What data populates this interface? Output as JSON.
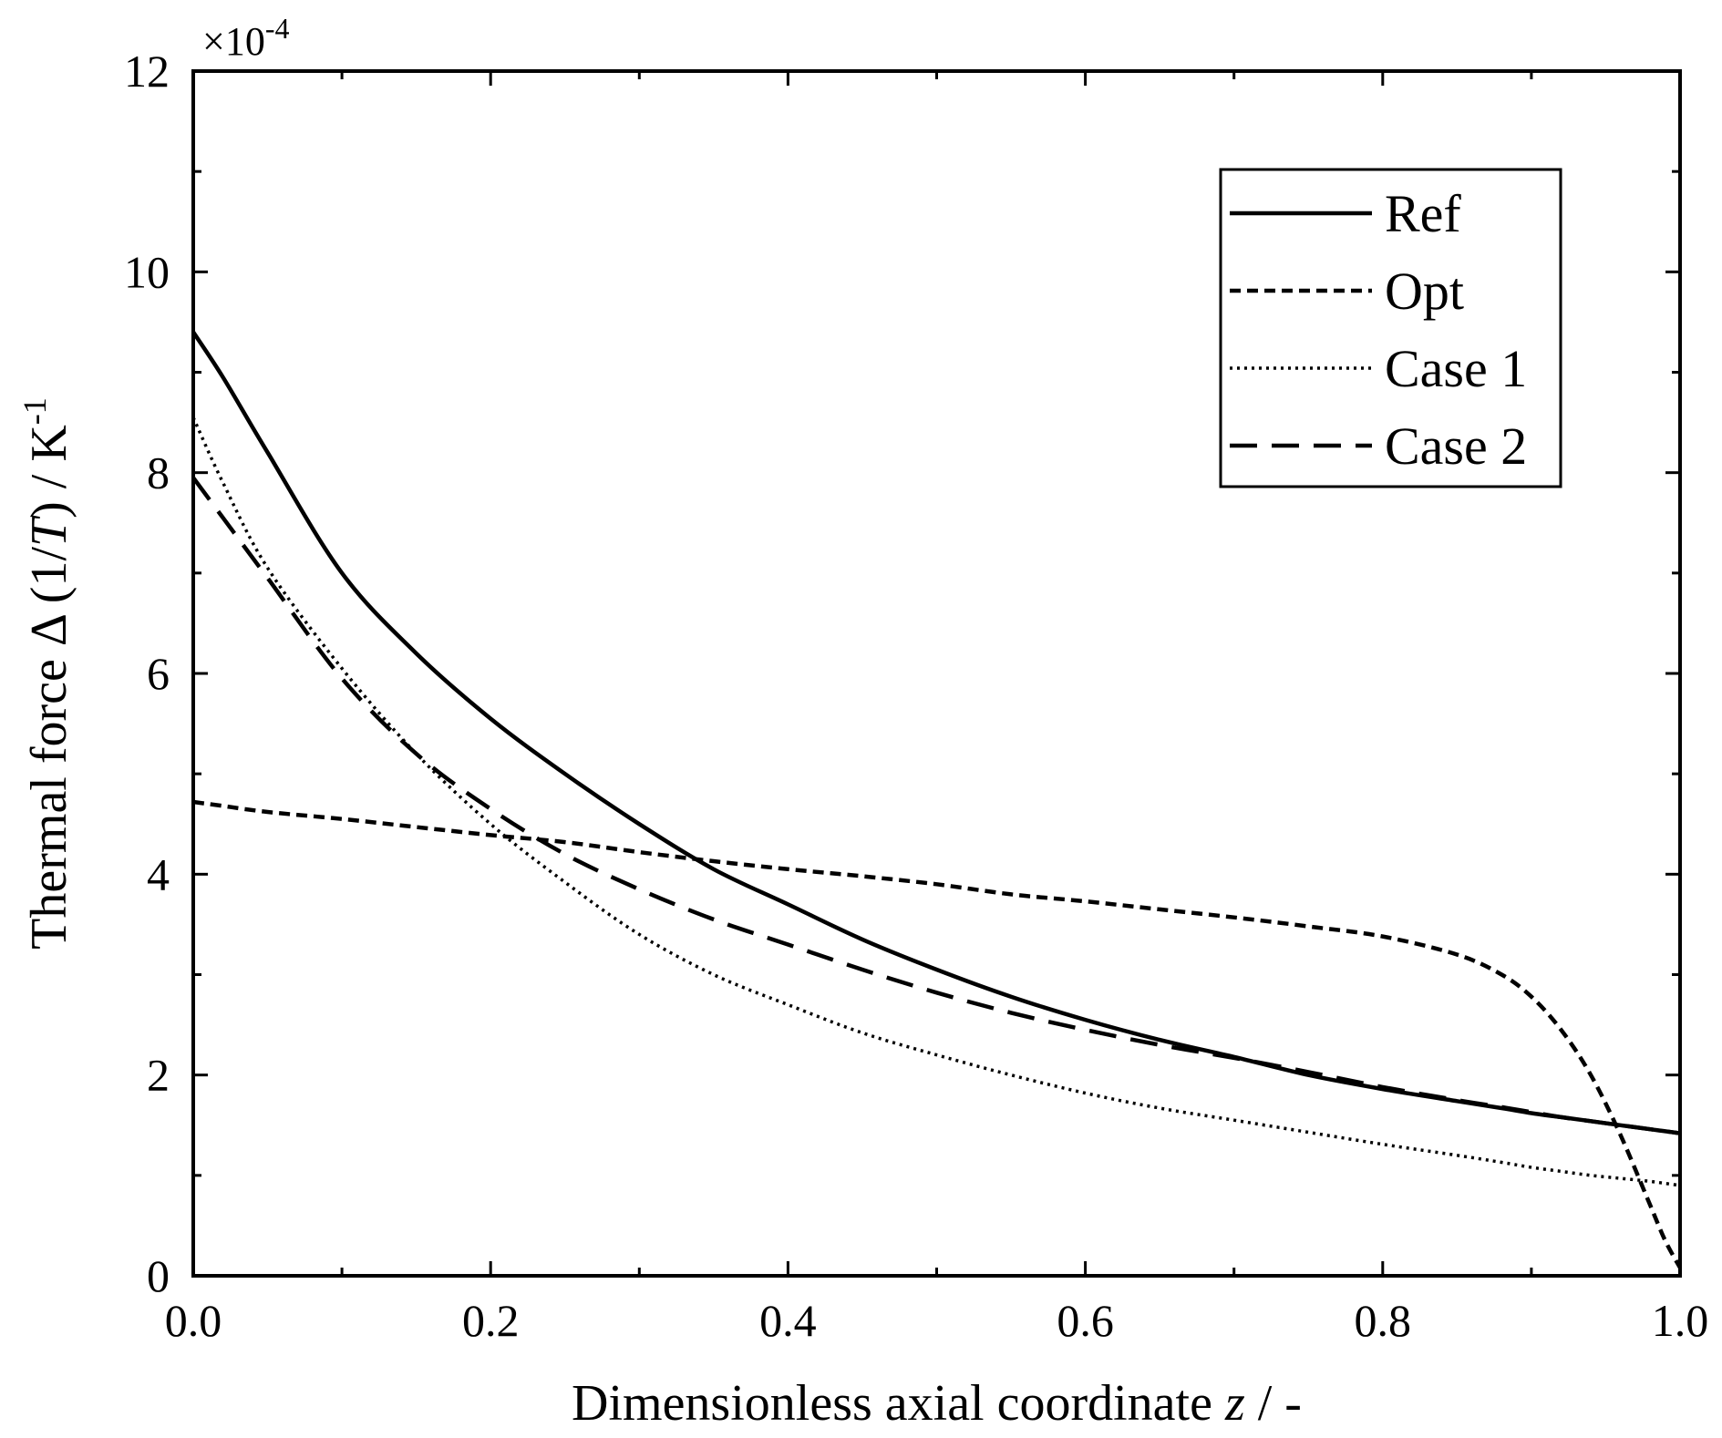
{
  "chart_data": {
    "type": "line",
    "title": "",
    "xlabel": {
      "prefix": "Dimensionless axial coordinate ",
      "variable": "z",
      "suffix": " / -"
    },
    "ylabel": {
      "prefix": "Thermal force  Δ (1/",
      "variable": "T",
      "mid": ") / K",
      "exponent": "-1"
    },
    "y_multiplier": {
      "base": "×10",
      "exponent": "-4"
    },
    "xlim": [
      0.0,
      1.0
    ],
    "ylim": [
      0,
      12
    ],
    "x_ticks": [
      "0.0",
      "0.2",
      "0.4",
      "0.6",
      "0.8",
      "1.0"
    ],
    "x_tick_values": [
      0.0,
      0.2,
      0.4,
      0.6,
      0.8,
      1.0
    ],
    "y_ticks": [
      "0",
      "2",
      "4",
      "6",
      "8",
      "10",
      "12"
    ],
    "y_tick_values": [
      0,
      2,
      4,
      6,
      8,
      10,
      12
    ],
    "legend_position": "top-right",
    "x": [
      0.0,
      0.02,
      0.05,
      0.1,
      0.15,
      0.2,
      0.25,
      0.3,
      0.35,
      0.4,
      0.45,
      0.5,
      0.55,
      0.6,
      0.65,
      0.7,
      0.75,
      0.8,
      0.85,
      0.88,
      0.9,
      0.92,
      0.94,
      0.96,
      0.98,
      0.99,
      1.0
    ],
    "series": [
      {
        "name": "Ref",
        "style": "solid",
        "values": [
          9.4,
          8.95,
          8.2,
          7.0,
          6.2,
          5.55,
          5.0,
          4.5,
          4.05,
          3.7,
          3.35,
          3.05,
          2.78,
          2.55,
          2.35,
          2.18,
          2.0,
          1.86,
          1.74,
          1.67,
          1.62,
          1.58,
          1.54,
          1.5,
          1.46,
          1.44,
          1.42
        ]
      },
      {
        "name": "Opt",
        "style": "short-dash",
        "values": [
          4.72,
          4.68,
          4.62,
          4.55,
          4.47,
          4.39,
          4.32,
          4.22,
          4.13,
          4.05,
          3.98,
          3.9,
          3.8,
          3.73,
          3.65,
          3.57,
          3.48,
          3.38,
          3.2,
          3.0,
          2.78,
          2.45,
          2.0,
          1.4,
          0.7,
          0.35,
          0.08
        ]
      },
      {
        "name": "Case 1",
        "style": "dotted",
        "values": [
          8.55,
          7.9,
          7.05,
          6.05,
          5.2,
          4.5,
          3.92,
          3.4,
          3.0,
          2.7,
          2.42,
          2.2,
          2.0,
          1.82,
          1.67,
          1.55,
          1.43,
          1.31,
          1.2,
          1.13,
          1.08,
          1.04,
          1.0,
          0.97,
          0.94,
          0.92,
          0.9
        ]
      },
      {
        "name": "Case 2",
        "style": "long-dash",
        "values": [
          7.95,
          7.55,
          6.95,
          5.95,
          5.2,
          4.65,
          4.2,
          3.85,
          3.55,
          3.3,
          3.05,
          2.82,
          2.62,
          2.45,
          2.3,
          2.17,
          2.03,
          1.88,
          1.75,
          1.68,
          1.63,
          1.58,
          1.54,
          1.5,
          1.46,
          1.44,
          1.42
        ]
      }
    ]
  }
}
